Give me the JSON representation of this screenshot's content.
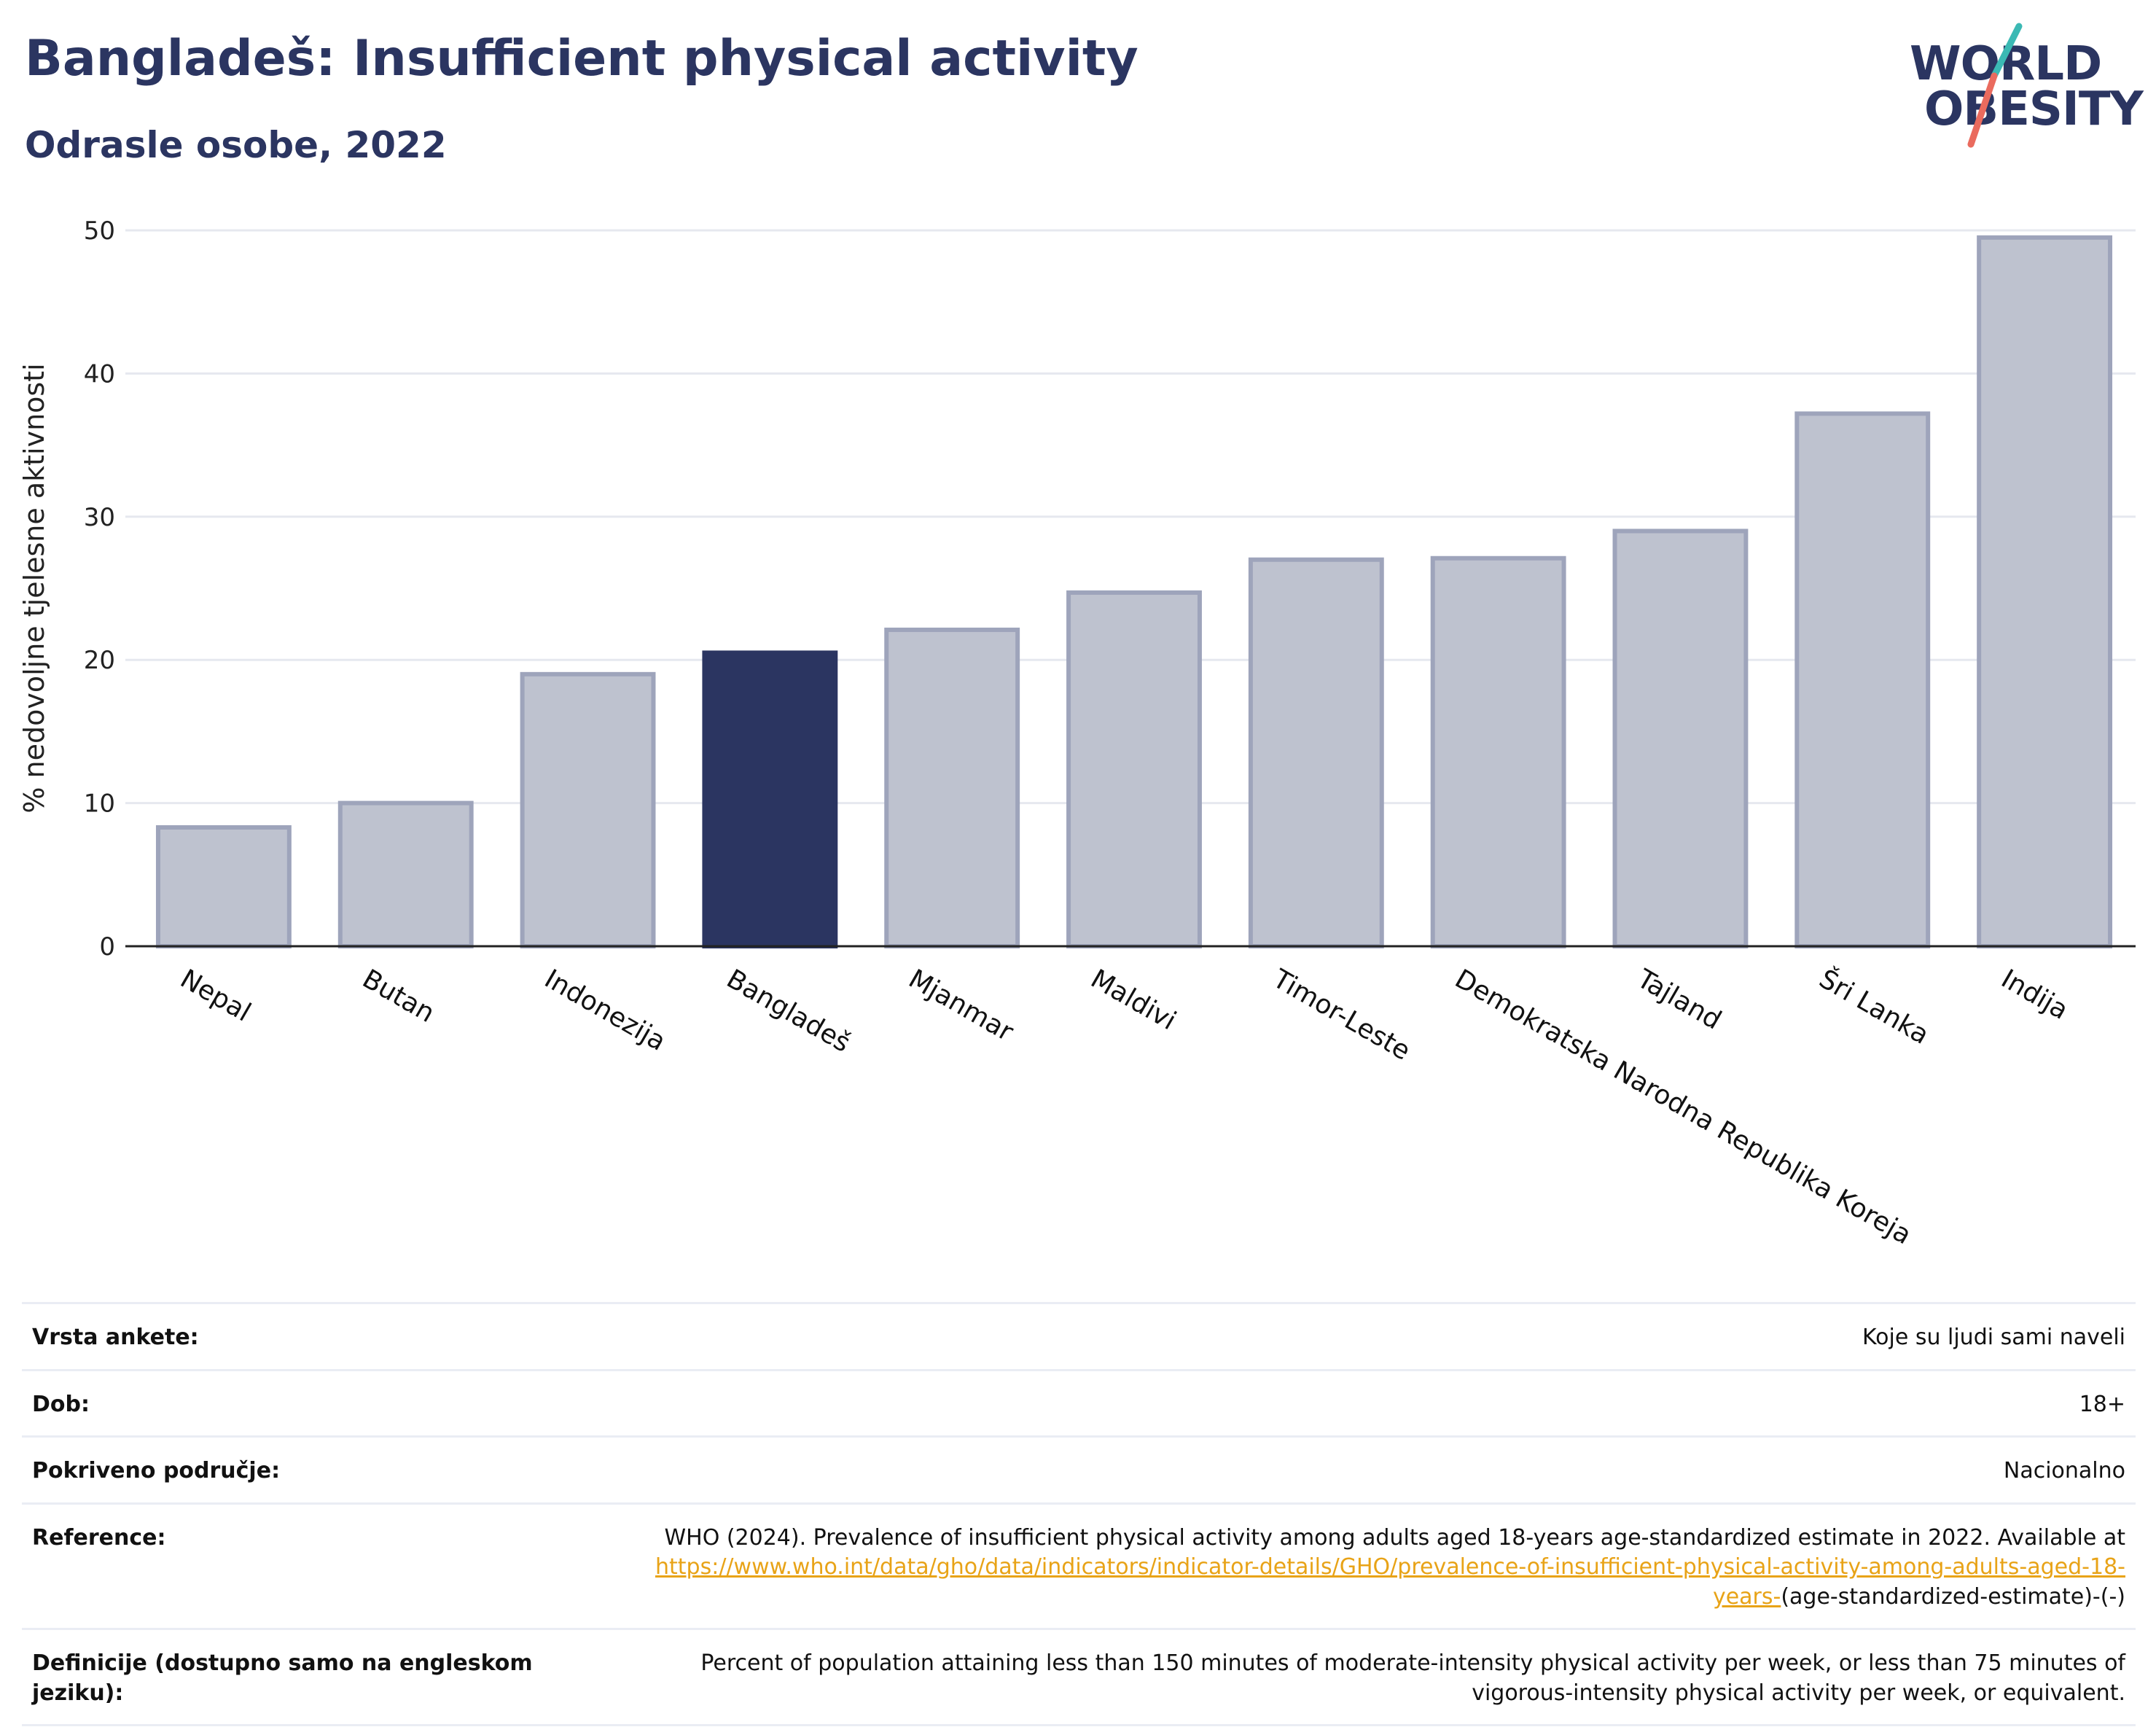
{
  "header": {
    "title": "Bangladeš: Insufficient physical activity",
    "subtitle": "Odrasle osobe, 2022"
  },
  "logo": {
    "line1": "WORLD",
    "line2": "OBESITY"
  },
  "colors": {
    "highlight": "#2b3561",
    "bar_fill": "#bec2cf",
    "bar_stroke": "#9ea4bb",
    "grid": "#e6e8ef",
    "link": "#e8a317"
  },
  "chart_data": {
    "type": "bar",
    "title": "Bangladeš: Insufficient physical activity",
    "subtitle": "Odrasle osobe, 2022",
    "xlabel": "",
    "ylabel": "% nedovoljne tjelesne aktivnosti",
    "categories": [
      "Nepal",
      "Butan",
      "Indonezija",
      "Bangladeš",
      "Mjanmar",
      "Maldivi",
      "Timor-Leste",
      "Demokratska Narodna Republika Koreja",
      "Tajland",
      "Šri Lanka",
      "Indija"
    ],
    "values": [
      8.3,
      10.0,
      19.0,
      20.5,
      22.1,
      24.7,
      27.0,
      27.1,
      29.0,
      37.2,
      49.5
    ],
    "highlight": "Bangladeš",
    "ylim": [
      0,
      50
    ],
    "yticks": [
      0,
      10,
      20,
      30,
      40,
      50
    ],
    "grid": true,
    "legend": "none"
  },
  "meta": {
    "rows": [
      {
        "key": "Vrsta ankete:",
        "value": "Koje su ljudi sami naveli"
      },
      {
        "key": "Dob:",
        "value": "18+"
      },
      {
        "key": "Pokriveno područje:",
        "value": "Nacionalno"
      }
    ],
    "reference": {
      "key": "Reference:",
      "text": "WHO (2024). Prevalence of insufficient physical activity among adults aged 18-years age-standardized estimate in 2022. Available at",
      "link_text": "https://www.who.int/data/gho/data/indicators/indicator-details/GHO/prevalence-of-insufficient-physical-activity-among-adults-aged-18-years-",
      "tail": "(age-standardized-estimate)-(-)"
    },
    "definition": {
      "key": "Definicije (dostupno samo na engleskom jeziku):",
      "value": "Percent of population attaining less than 150 minutes of moderate-intensity physical activity per week, or less than 75 minutes of vigorous-intensity physical activity per week, or equivalent."
    }
  }
}
